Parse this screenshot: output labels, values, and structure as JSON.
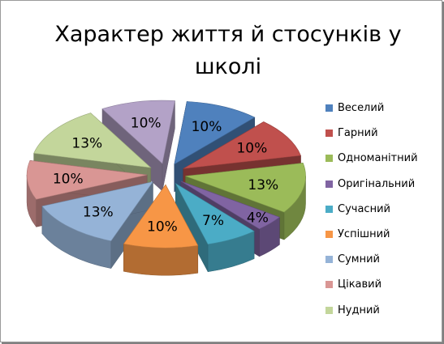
{
  "chart_data": {
    "type": "pie",
    "title": "Характер життя й стосунків у школі",
    "title_lines": [
      "Характер життя й стосунків у",
      "школі"
    ],
    "legend_placement": "right",
    "exploded": true,
    "three_d": true,
    "slices": [
      {
        "label": "Веселий",
        "value": 10,
        "value_label": "10%",
        "color": "#4F81BD"
      },
      {
        "label": "Гарний",
        "value": 10,
        "value_label": "10%",
        "color": "#C0504D"
      },
      {
        "label": "Одноманітний",
        "value": 13,
        "value_label": "13%",
        "color": "#9BBB59"
      },
      {
        "label": "Оригінальний",
        "value": 4,
        "value_label": "4%",
        "color": "#8064A2"
      },
      {
        "label": "Сучасний",
        "value": 7,
        "value_label": "7%",
        "color": "#4BACC6"
      },
      {
        "label": "Успішний",
        "value": 10,
        "value_label": "10%",
        "color": "#F79646"
      },
      {
        "label": "Сумний",
        "value": 13,
        "value_label": "13%",
        "color": "#95B3D7"
      },
      {
        "label": "Цікавий",
        "value": 10,
        "value_label": "10%",
        "color": "#D99694"
      },
      {
        "label": "Нудний",
        "value": 13,
        "value_label": "13%",
        "color": "#C3D69B"
      },
      {
        "label": "",
        "value": 10,
        "value_label": "10%",
        "color": "#B3A2C7"
      }
    ]
  }
}
